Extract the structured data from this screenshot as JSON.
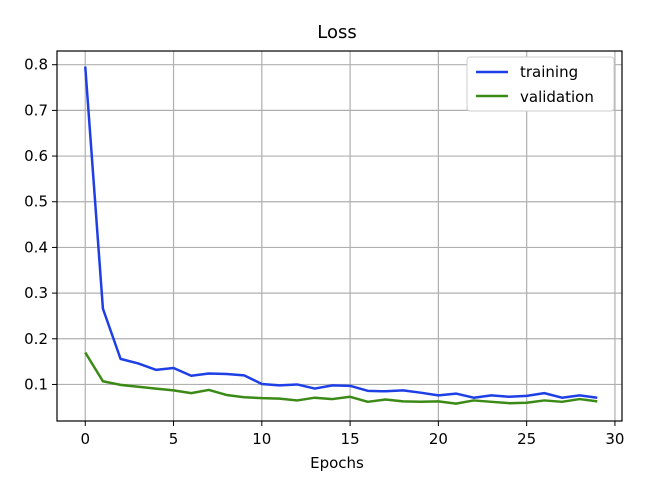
{
  "chart_data": {
    "type": "line",
    "title": "Loss",
    "xlabel": "Epochs",
    "ylabel": "",
    "xlim": [
      -1.6,
      30.4
    ],
    "ylim": [
      0.02,
      0.83
    ],
    "xticks": [
      0,
      5,
      10,
      15,
      20,
      25,
      30
    ],
    "yticks": [
      0.1,
      0.2,
      0.3,
      0.4,
      0.5,
      0.6,
      0.7,
      0.8
    ],
    "xtick_labels": [
      "0",
      "5",
      "10",
      "15",
      "20",
      "25",
      "30"
    ],
    "ytick_labels": [
      "0.1",
      "0.2",
      "0.3",
      "0.4",
      "0.5",
      "0.6",
      "0.7",
      "0.8"
    ],
    "grid": true,
    "legend_position": "top-right",
    "x": [
      0,
      1,
      2,
      3,
      4,
      5,
      6,
      7,
      8,
      9,
      10,
      11,
      12,
      13,
      14,
      15,
      16,
      17,
      18,
      19,
      20,
      21,
      22,
      23,
      24,
      25,
      26,
      27,
      28,
      29
    ],
    "series": [
      {
        "name": "training",
        "color": "#1f3fe6",
        "values": [
          0.796,
          0.266,
          0.156,
          0.146,
          0.132,
          0.136,
          0.119,
          0.124,
          0.123,
          0.12,
          0.101,
          0.098,
          0.1,
          0.091,
          0.098,
          0.097,
          0.086,
          0.085,
          0.087,
          0.082,
          0.076,
          0.08,
          0.071,
          0.076,
          0.073,
          0.075,
          0.081,
          0.071,
          0.076,
          0.071
        ]
      },
      {
        "name": "validation",
        "color": "#3b8a16",
        "values": [
          0.17,
          0.107,
          0.099,
          0.095,
          0.091,
          0.087,
          0.081,
          0.088,
          0.077,
          0.072,
          0.07,
          0.069,
          0.065,
          0.071,
          0.068,
          0.073,
          0.062,
          0.067,
          0.063,
          0.062,
          0.063,
          0.058,
          0.065,
          0.062,
          0.059,
          0.06,
          0.065,
          0.062,
          0.068,
          0.063
        ]
      }
    ]
  }
}
